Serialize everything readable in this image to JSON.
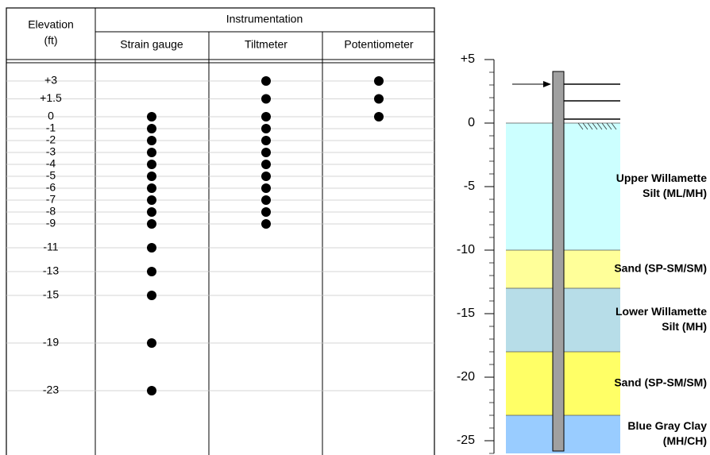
{
  "table": {
    "header": {
      "elevation": [
        "Elevation",
        "(ft)"
      ],
      "group": "Instrumentation"
    },
    "elevations": [
      {
        "value": 3,
        "label": "+3"
      },
      {
        "value": 1.5,
        "label": "+1.5"
      },
      0,
      -1,
      -2,
      -3,
      -4,
      -5,
      -6,
      -7,
      -8,
      -9,
      -11,
      -13,
      -15,
      -19,
      -23
    ],
    "columns": [
      {
        "name": "Strain gauge",
        "elevations": [
          0,
          -1,
          -2,
          -3,
          -4,
          -5,
          -6,
          -7,
          -8,
          -9,
          -11,
          -13,
          -15,
          -19,
          -23
        ]
      },
      {
        "name": "Tiltmeter",
        "elevations": [
          3,
          1.5,
          0,
          -1,
          -2,
          -3,
          -4,
          -5,
          -6,
          -7,
          -8,
          -9
        ]
      },
      {
        "name": "Potentiometer",
        "elevations": [
          3,
          1.5,
          0
        ]
      }
    ]
  },
  "profile": {
    "ylim": [
      -26,
      5
    ],
    "yticks": [
      {
        "value": 5,
        "label": "+5"
      },
      0,
      -5,
      -10,
      -15,
      -20,
      -25
    ],
    "layers": [
      {
        "name": [
          "Upper Willamette",
          "Silt (ML/MH)"
        ],
        "top": 0,
        "color": "#ccffff"
      },
      {
        "name": [
          "Sand (SP-SM/SM)"
        ],
        "top": -10,
        "color": "#ffff99"
      },
      {
        "name": [
          "Lower Willamette",
          "Silt (MH)"
        ],
        "top": -13,
        "color": "#b7dde8"
      },
      {
        "name": [
          "Sand (SP-SM/SM)"
        ],
        "top": -18,
        "color": "#ffff66"
      },
      {
        "name": [
          "Blue Gray Clay",
          "(MH/CH)"
        ],
        "top": -23,
        "color": "#99ccff"
      }
    ]
  }
}
